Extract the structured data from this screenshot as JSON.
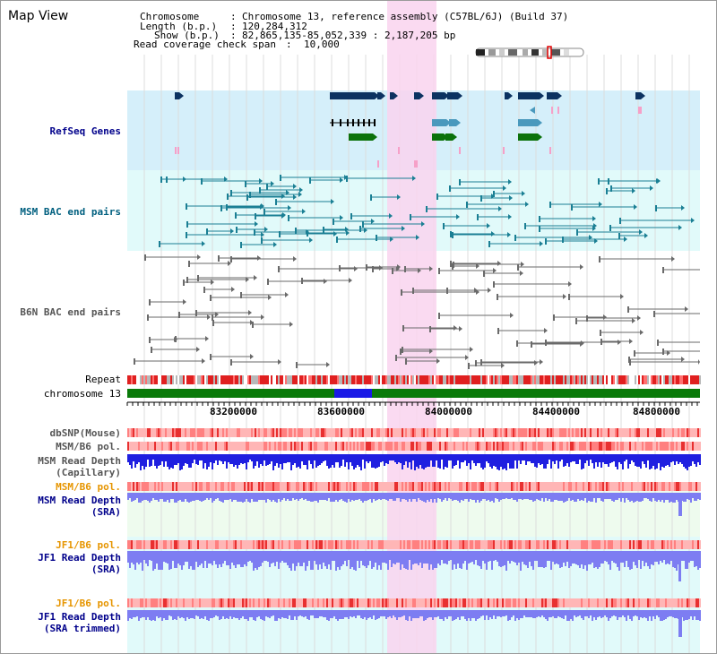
{
  "view_title": "Map View",
  "header": {
    "chromosome_key": "Chromosome",
    "chromosome_value": "Chromosome 13, reference assembly (C57BL/6J) (Build 37)",
    "length_key": "Length (b.p.)",
    "length_value": "120,284,312",
    "show_key": "Show (b.p.)",
    "show_value": "82,865,135-85,052,339 : 2,187,205 bp",
    "span_key": "Read coverage check span",
    "span_value": "10,000"
  },
  "tracks": {
    "refseq": "RefSeq Genes",
    "msm_bac": "MSM BAC end pairs",
    "b6n_bac": "B6N BAC end pairs",
    "repeat": "Repeat",
    "chromosome": "chromosome 13",
    "dbsnp": "dbSNP(Mouse)",
    "msm_b6_pol_1": "MSM/B6 pol.",
    "msm_depth_cap_1": "MSM Read Depth",
    "msm_depth_cap_2": "(Capillary)",
    "msm_b6_pol_2": "MSM/B6 pol.",
    "msm_depth_sra_1": "MSM Read Depth",
    "msm_depth_sra_2": "(SRA)",
    "jf1_b6_pol_1": "JF1/B6 pol.",
    "jf1_depth_sra_1": "JF1 Read Depth",
    "jf1_depth_sra_2": "(SRA)",
    "jf1_b6_pol_2": "JF1/B6 pol.",
    "jf1_depth_trim_1": "JF1 Read Depth",
    "jf1_depth_trim_2": "(SRA trimmed)"
  },
  "axis": {
    "ticks": [
      "83200000",
      "83600000",
      "84000000",
      "84400000",
      "84800000"
    ]
  },
  "colors": {
    "highlight": "#f9d4ef",
    "refseq_bg": "#d5effa",
    "msm_bg": "#e1fafa",
    "gene_dark": "#0c3261",
    "gene_mid": "#4a99bd",
    "gene_green": "#0c720c",
    "chrom_green": "#0a7a0a",
    "chrom_blue": "#1a1ae6",
    "label_blue": "#00008b",
    "label_teal": "#005f7f",
    "label_orange": "#e69500",
    "depth_blue": "#1f1fe0",
    "depth_light": "#7d7df2"
  }
}
